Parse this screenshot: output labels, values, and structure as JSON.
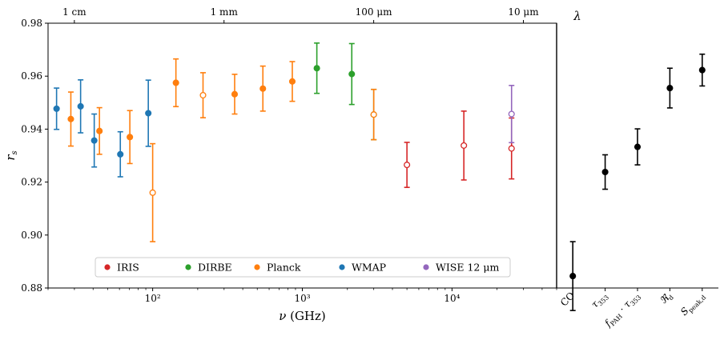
{
  "chart_data": [
    {
      "type": "scatter",
      "subtype": "errorbar",
      "x_scale": "log",
      "xlim": [
        20,
        50000
      ],
      "ylim": [
        0.88,
        0.98
      ],
      "xlabel": "ν (GHz)",
      "ylabel": "r_s",
      "x_ticks": [
        {
          "value": 100,
          "label": "10²"
        },
        {
          "value": 1000,
          "label": "10³"
        },
        {
          "value": 10000,
          "label": "10⁴"
        }
      ],
      "y_ticks": [
        {
          "value": 0.88,
          "label": "0.88"
        },
        {
          "value": 0.9,
          "label": "0.90"
        },
        {
          "value": 0.92,
          "label": "0.92"
        },
        {
          "value": 0.94,
          "label": "0.94"
        },
        {
          "value": 0.96,
          "label": "0.96"
        },
        {
          "value": 0.98,
          "label": "0.98"
        }
      ],
      "top_axis": {
        "label": "λ",
        "ticks": [
          {
            "value": 29.98,
            "label": "1 cm"
          },
          {
            "value": 299.8,
            "label": "1 mm"
          },
          {
            "value": 2998,
            "label": "100 μm"
          },
          {
            "value": 29980,
            "label": "10 μm"
          }
        ]
      },
      "legend_position": "lower-center",
      "series": [
        {
          "name": "IRIS",
          "color": "#d62728",
          "points": [
            {
              "x": 5000,
              "y": 0.9265,
              "err_low": 0.0085,
              "err_high": 0.0085,
              "filled": false
            },
            {
              "x": 12000,
              "y": 0.9338,
              "err_low": 0.013,
              "err_high": 0.013,
              "filled": false
            },
            {
              "x": 25000,
              "y": 0.9327,
              "err_low": 0.0115,
              "err_high": 0.0115,
              "filled": false
            }
          ]
        },
        {
          "name": "DIRBE",
          "color": "#2ca02c",
          "points": [
            {
              "x": 1250,
              "y": 0.963,
              "err_low": 0.0095,
              "err_high": 0.0095,
              "filled": true
            },
            {
              "x": 2140,
              "y": 0.9608,
              "err_low": 0.0115,
              "err_high": 0.0115,
              "filled": true
            },
            {
              "x": 3000,
              "y": 0.9455,
              "err_low": 0.0095,
              "err_high": 0.0095,
              "filled": true
            }
          ]
        },
        {
          "name": "Planck",
          "color": "#ff7f0e",
          "points": [
            {
              "x": 28.4,
              "y": 0.9438,
              "err_low": 0.0102,
              "err_high": 0.0102,
              "filled": true
            },
            {
              "x": 44.1,
              "y": 0.9393,
              "err_low": 0.0088,
              "err_high": 0.0088,
              "filled": true
            },
            {
              "x": 70.4,
              "y": 0.937,
              "err_low": 0.01,
              "err_high": 0.01,
              "filled": true
            },
            {
              "x": 100,
              "y": 0.916,
              "err_low": 0.0185,
              "err_high": 0.0185,
              "filled": false
            },
            {
              "x": 143,
              "y": 0.9575,
              "err_low": 0.009,
              "err_high": 0.009,
              "filled": true
            },
            {
              "x": 217,
              "y": 0.9528,
              "err_low": 0.0085,
              "err_high": 0.0085,
              "filled": false
            },
            {
              "x": 353,
              "y": 0.9532,
              "err_low": 0.0075,
              "err_high": 0.0075,
              "filled": true
            },
            {
              "x": 545,
              "y": 0.9553,
              "err_low": 0.0085,
              "err_high": 0.0085,
              "filled": true
            },
            {
              "x": 857,
              "y": 0.958,
              "err_low": 0.0075,
              "err_high": 0.0075,
              "filled": true
            },
            {
              "x": 3000,
              "y": 0.9455,
              "err_low": 0.0095,
              "err_high": 0.0095,
              "filled": false
            }
          ]
        },
        {
          "name": "WMAP",
          "color": "#1f77b4",
          "points": [
            {
              "x": 22.8,
              "y": 0.9477,
              "err_low": 0.0078,
              "err_high": 0.0078,
              "filled": true
            },
            {
              "x": 33,
              "y": 0.9486,
              "err_low": 0.01,
              "err_high": 0.01,
              "filled": true
            },
            {
              "x": 40.7,
              "y": 0.9357,
              "err_low": 0.01,
              "err_high": 0.01,
              "filled": true
            },
            {
              "x": 60.8,
              "y": 0.9305,
              "err_low": 0.0085,
              "err_high": 0.0085,
              "filled": true
            },
            {
              "x": 93.5,
              "y": 0.946,
              "err_low": 0.0125,
              "err_high": 0.0125,
              "filled": true
            }
          ]
        },
        {
          "name": "WISE 12 μm",
          "color": "#9467bd",
          "points": [
            {
              "x": 25000,
              "y": 0.9457,
              "err_low": 0.0108,
              "err_high": 0.0108,
              "filled": false
            }
          ]
        }
      ]
    },
    {
      "type": "scatter",
      "subtype": "errorbar",
      "ylim": [
        0.88,
        0.98
      ],
      "categories": [
        "CO",
        "τ353",
        "fPAH · τ353",
        "ℜd",
        "Speak,d"
      ],
      "color": "#000000",
      "points": [
        {
          "category": "CO",
          "y": 0.8845,
          "err_low": 0.013,
          "err_high": 0.013
        },
        {
          "category": "τ353",
          "y": 0.9238,
          "err_low": 0.0065,
          "err_high": 0.0065
        },
        {
          "category": "fPAH · τ353",
          "y": 0.9333,
          "err_low": 0.0068,
          "err_high": 0.0068
        },
        {
          "category": "ℜd",
          "y": 0.9555,
          "err_low": 0.0075,
          "err_high": 0.0075
        },
        {
          "category": "Speak,d",
          "y": 0.9623,
          "err_low": 0.006,
          "err_high": 0.006
        }
      ]
    }
  ]
}
